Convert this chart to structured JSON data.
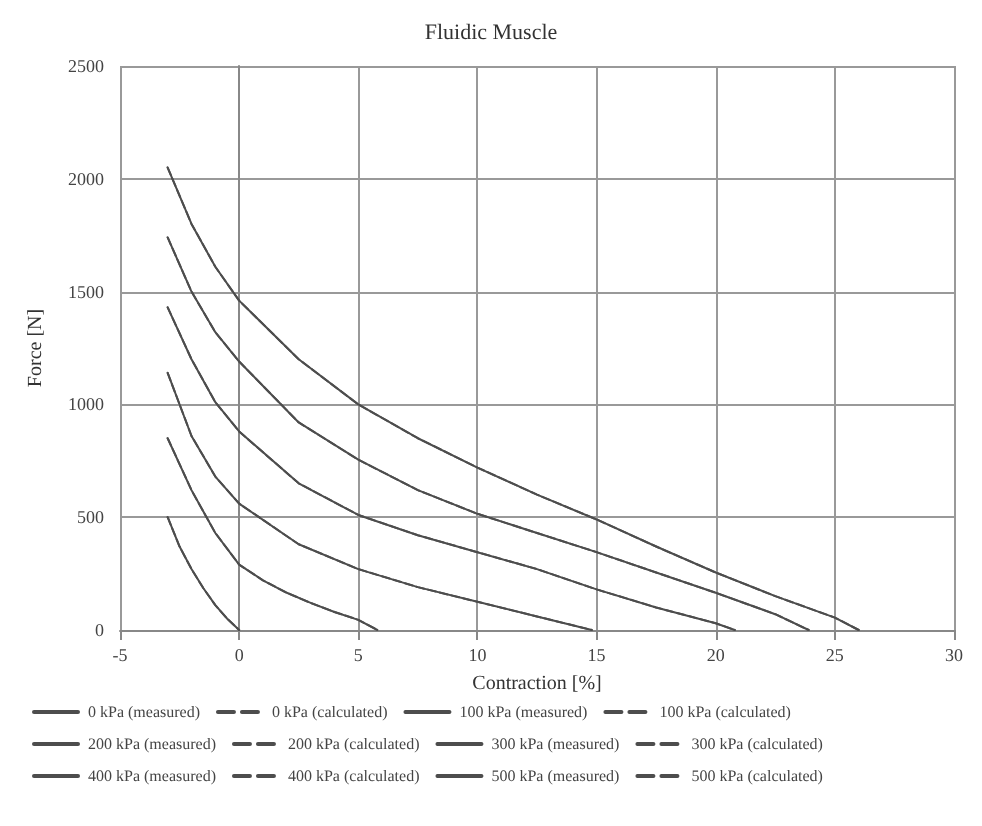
{
  "chart_data": {
    "type": "line",
    "title": "Fluidic Muscle",
    "xlabel": "Contraction [%]",
    "ylabel": "Force [N]",
    "xlim": [
      -5,
      30
    ],
    "xticks": [
      -5,
      0,
      5,
      10,
      15,
      20,
      25,
      30
    ],
    "ylim": [
      0,
      2500
    ],
    "yticks": [
      0,
      500,
      1000,
      1500,
      2000,
      2500
    ],
    "grid": true,
    "legend": "bottom",
    "marker": "none",
    "series": [
      {
        "name": "0 kPa (measured)",
        "color": "#4d4d4d",
        "line_style": "solid",
        "x": [
          -3,
          -2.5,
          -2,
          -1.5,
          -1,
          -0.5,
          0
        ],
        "values": [
          500,
          370,
          270,
          185,
          110,
          50,
          0
        ]
      },
      {
        "name": "0 kPa (calculated)",
        "color": "#4d4d4d",
        "line_style": "dashed",
        "x": [
          -3,
          -2.5,
          -2,
          -1.5,
          -1,
          -0.5,
          0
        ],
        "values": [
          500,
          370,
          270,
          185,
          110,
          50,
          0
        ]
      },
      {
        "name": "100 kPa (measured)",
        "color": "#4d4d4d",
        "line_style": "solid",
        "x": [
          -3,
          -2,
          -1,
          0,
          1,
          2,
          3,
          4,
          5,
          5.8
        ],
        "values": [
          850,
          620,
          430,
          290,
          220,
          165,
          120,
          80,
          45,
          0
        ]
      },
      {
        "name": "100 kPa (calculated)",
        "color": "#4d4d4d",
        "line_style": "dashed",
        "x": [
          -3,
          -2,
          -1,
          0,
          1,
          2,
          3,
          4,
          5,
          5.8
        ],
        "values": [
          850,
          620,
          430,
          290,
          220,
          165,
          120,
          80,
          45,
          0
        ]
      },
      {
        "name": "200 kPa (measured)",
        "color": "#4d4d4d",
        "line_style": "solid",
        "x": [
          -3,
          -2,
          -1,
          0,
          2.5,
          5,
          7.5,
          10,
          12.5,
          14.8
        ],
        "values": [
          1140,
          860,
          680,
          560,
          380,
          270,
          190,
          125,
          60,
          0
        ]
      },
      {
        "name": "200 kPa (calculated)",
        "color": "#4d4d4d",
        "line_style": "dashed",
        "x": [
          -3,
          -2,
          -1,
          0,
          2.5,
          5,
          7.5,
          10,
          12.5,
          14.8
        ],
        "values": [
          1140,
          860,
          680,
          560,
          380,
          270,
          190,
          125,
          60,
          0
        ]
      },
      {
        "name": "300 kPa (measured)",
        "color": "#4d4d4d",
        "line_style": "solid",
        "x": [
          -3,
          -2,
          -1,
          0,
          2.5,
          5,
          7.5,
          10,
          12.5,
          15,
          17.5,
          20,
          20.8
        ],
        "values": [
          1430,
          1200,
          1010,
          880,
          650,
          510,
          420,
          345,
          270,
          180,
          100,
          30,
          0
        ]
      },
      {
        "name": "300 kPa (calculated)",
        "color": "#4d4d4d",
        "line_style": "dashed",
        "x": [
          -3,
          -2,
          -1,
          0,
          2.5,
          5,
          7.5,
          10,
          12.5,
          15,
          17.5,
          20,
          20.8
        ],
        "values": [
          1430,
          1200,
          1010,
          880,
          650,
          510,
          420,
          345,
          270,
          180,
          100,
          30,
          0
        ]
      },
      {
        "name": "400 kPa (measured)",
        "color": "#4d4d4d",
        "line_style": "solid",
        "x": [
          -3,
          -2,
          -1,
          0,
          2.5,
          5,
          7.5,
          10,
          12.5,
          15,
          17.5,
          20,
          22.5,
          23.9
        ],
        "values": [
          1740,
          1500,
          1320,
          1190,
          920,
          755,
          620,
          515,
          430,
          345,
          255,
          165,
          70,
          0
        ]
      },
      {
        "name": "400 kPa (calculated)",
        "color": "#4d4d4d",
        "line_style": "dashed",
        "x": [
          -3,
          -2,
          -1,
          0,
          2.5,
          5,
          7.5,
          10,
          12.5,
          15,
          17.5,
          20,
          22.5,
          23.9
        ],
        "values": [
          1740,
          1500,
          1320,
          1190,
          920,
          755,
          620,
          515,
          430,
          345,
          255,
          165,
          70,
          0
        ]
      },
      {
        "name": "500 kPa (measured)",
        "color": "#4d4d4d",
        "line_style": "solid",
        "x": [
          -3,
          -2,
          -1,
          0,
          2.5,
          5,
          7.5,
          10,
          12.5,
          15,
          17.5,
          20,
          22.5,
          25,
          26
        ],
        "values": [
          2050,
          1800,
          1610,
          1460,
          1200,
          1000,
          850,
          720,
          600,
          490,
          370,
          255,
          150,
          55,
          0
        ]
      },
      {
        "name": "500 kPa (calculated)",
        "color": "#4d4d4d",
        "line_style": "dashed",
        "x": [
          -3,
          -2,
          -1,
          0,
          2.5,
          5,
          7.5,
          10,
          12.5,
          15,
          17.5,
          20,
          22.5,
          25,
          26
        ],
        "values": [
          2050,
          1800,
          1610,
          1460,
          1200,
          1000,
          850,
          720,
          600,
          490,
          370,
          255,
          150,
          55,
          0
        ]
      }
    ]
  }
}
